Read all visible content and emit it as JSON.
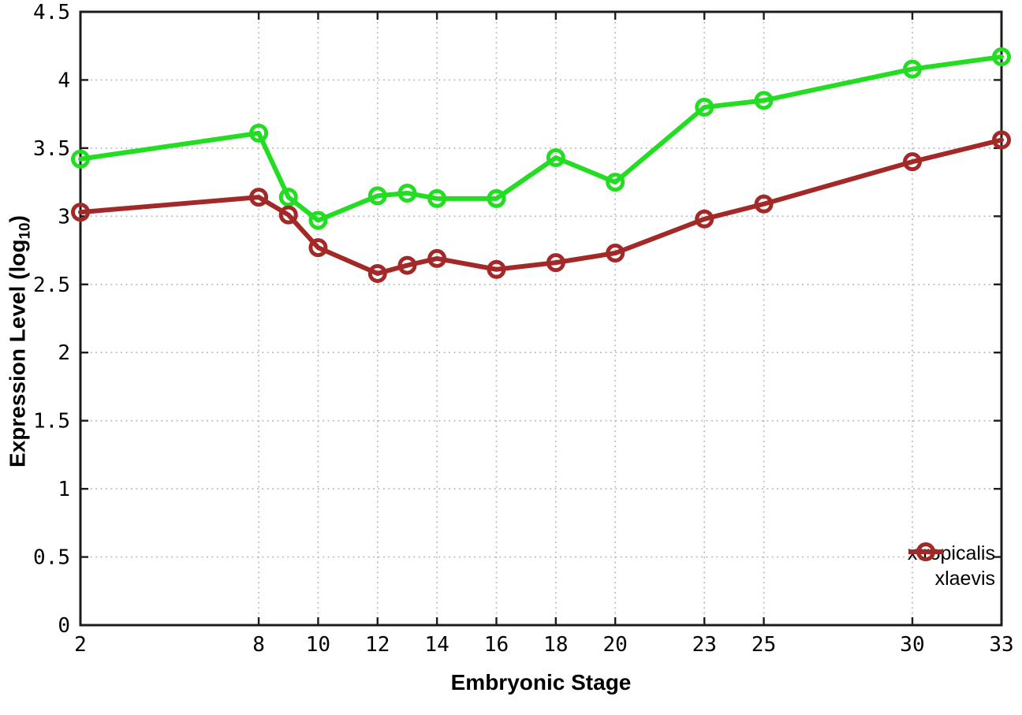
{
  "axes": {
    "x_title": "Embryonic Stage",
    "y_title_pre": "Expression Level (log",
    "y_title_sub": "10",
    "y_title_post": ")"
  },
  "colors": {
    "background": "#ffffff",
    "border": "#1c1c1c",
    "grid": "#b3b3b3",
    "text": "#000000",
    "xtropicalis": "#23dd23",
    "xlaevis": "#a32929"
  },
  "legend": {
    "position": "inside-bottom-right",
    "items": [
      {
        "label": "xtropicalis",
        "color": "#23dd23"
      },
      {
        "label": "xlaevis",
        "color": "#a32929"
      }
    ]
  },
  "chart_data": {
    "type": "line",
    "title": "",
    "xlabel": "Embryonic Stage",
    "ylabel": "Expression Level (log10)",
    "x": [
      2,
      8,
      9,
      10,
      12,
      13,
      14,
      16,
      18,
      20,
      23,
      25,
      30,
      33
    ],
    "series": [
      {
        "name": "xtropicalis",
        "color": "#23dd23",
        "marker": "open-circle",
        "values": [
          3.42,
          3.61,
          3.14,
          2.97,
          3.15,
          3.17,
          3.13,
          3.13,
          3.43,
          3.25,
          3.8,
          3.85,
          4.08,
          4.17
        ]
      },
      {
        "name": "xlaevis",
        "color": "#a32929",
        "marker": "open-circle",
        "values": [
          3.03,
          3.14,
          3.01,
          2.77,
          2.58,
          2.64,
          2.69,
          2.61,
          2.66,
          2.73,
          2.98,
          3.09,
          3.4,
          3.56
        ]
      }
    ],
    "xlim": [
      2,
      33
    ],
    "ylim": [
      0,
      4.5
    ],
    "xticks": [
      2,
      8,
      10,
      12,
      14,
      16,
      18,
      20,
      23,
      25,
      30,
      33
    ],
    "yticks": [
      0,
      0.5,
      1,
      1.5,
      2,
      2.5,
      3,
      3.5,
      4,
      4.5
    ],
    "grid": true,
    "grid_style": "dotted",
    "legend_position": "bottom-right"
  }
}
